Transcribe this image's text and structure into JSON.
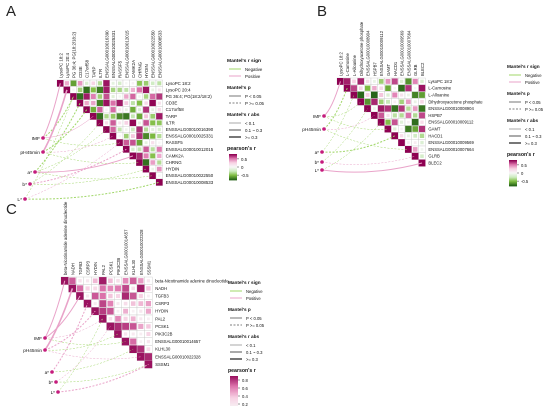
{
  "colors": {
    "pos_strong": "#8e0152",
    "pos_mid": "#de77ae",
    "pos_light": "#f7d2e4",
    "neutral": "#f7f7f7",
    "neg_light": "#cdebc0",
    "neg_mid": "#7fbc41",
    "neg_strong": "#276419",
    "grid": "#c8c8c8",
    "link_negative": "#a1d76a",
    "link_positive": "#e9a3c9",
    "env_point": "#c51b7d"
  },
  "legend_text": {
    "mantel_sign": "Mantel's r sign",
    "negative": "Negative",
    "positive": "Positive",
    "mantel_p": "Mantel's p",
    "p_lt": "P < 0.05",
    "p_ge": "P >= 0.05",
    "mantel_r": "Mantel's r abs",
    "r1": "< 0.1",
    "r2": "0.1 ~ 0.3",
    "r3": ">= 0.3",
    "pearson": "pearson's r"
  },
  "chart_data": [
    {
      "panel": "A",
      "type": "heatmap",
      "variables": [
        "LysoPC 18:2",
        "LysoPC 20:4",
        "PG 36:4; PG(18:2/18:2)",
        "CD3E",
        "C17orf58",
        "TARP",
        "ILTR",
        "ENSSALG00010016390",
        "ENSSALG00010025331",
        "RASSF5",
        "ENSSALG00010012015",
        "CAMK2A",
        "CHRNG",
        "HYDIN",
        "ENSSALG00010022550",
        "ENSSALG00010008533"
      ],
      "env_factors": [
        "IMF",
        "pH45min",
        "a*",
        "b*",
        "L*"
      ],
      "color_ticks": [
        0.5,
        0.0,
        -0.5
      ],
      "mantel_links": [
        {
          "env": "IMF",
          "target": 0,
          "sign": "positive",
          "width": "mid",
          "sig": true
        },
        {
          "env": "IMF",
          "target": 2,
          "sign": "negative",
          "width": "mid",
          "sig": false
        },
        {
          "env": "IMF",
          "target": 5,
          "sign": "positive",
          "width": "thin",
          "sig": true
        },
        {
          "env": "IMF",
          "target": 9,
          "sign": "negative",
          "width": "thin",
          "sig": false
        },
        {
          "env": "pH45min",
          "target": 1,
          "sign": "positive",
          "width": "thick",
          "sig": true
        },
        {
          "env": "pH45min",
          "target": 4,
          "sign": "negative",
          "width": "mid",
          "sig": false
        },
        {
          "env": "pH45min",
          "target": 8,
          "sign": "positive",
          "width": "thin",
          "sig": false
        },
        {
          "env": "pH45min",
          "target": 12,
          "sign": "negative",
          "width": "thin",
          "sig": false
        },
        {
          "env": "a*",
          "target": 3,
          "sign": "negative",
          "width": "mid",
          "sig": false
        },
        {
          "env": "a*",
          "target": 7,
          "sign": "negative",
          "width": "thin",
          "sig": false
        },
        {
          "env": "a*",
          "target": 11,
          "sign": "positive",
          "width": "mid",
          "sig": true
        },
        {
          "env": "a*",
          "target": 14,
          "sign": "negative",
          "width": "thin",
          "sig": false
        },
        {
          "env": "b*",
          "target": 6,
          "sign": "negative",
          "width": "thin",
          "sig": false
        },
        {
          "env": "b*",
          "target": 10,
          "sign": "positive",
          "width": "mid",
          "sig": false
        },
        {
          "env": "b*",
          "target": 13,
          "sign": "negative",
          "width": "thin",
          "sig": false
        },
        {
          "env": "L*",
          "target": 2,
          "sign": "negative",
          "width": "thin",
          "sig": false
        },
        {
          "env": "L*",
          "target": 9,
          "sign": "positive",
          "width": "thin",
          "sig": false
        },
        {
          "env": "L*",
          "target": 15,
          "sign": "negative",
          "width": "mid",
          "sig": false
        }
      ]
    },
    {
      "panel": "B",
      "type": "heatmap",
      "variables": [
        "LysoPC 18:2",
        "L-Carnosine",
        "L-Alloanine",
        "Dihydroxyacetone phosphate",
        "ENSSALG00010008904",
        "HSPB7",
        "ENSSALG00010009112",
        "GAMT",
        "HACD1",
        "ENSSALG00010009569",
        "ENSSALG00010007664",
        "GLRB",
        "BLEC2"
      ],
      "env_factors": [
        "IMF",
        "pH45min",
        "a*",
        "b*",
        "L*"
      ],
      "color_ticks": [
        0.5,
        0.0,
        -0.5
      ],
      "mantel_links": [
        {
          "env": "IMF",
          "target": 0,
          "sign": "positive",
          "width": "mid",
          "sig": true
        },
        {
          "env": "IMF",
          "target": 3,
          "sign": "negative",
          "width": "thin",
          "sig": false
        },
        {
          "env": "IMF",
          "target": 7,
          "sign": "negative",
          "width": "thin",
          "sig": false
        },
        {
          "env": "pH45min",
          "target": 1,
          "sign": "negative",
          "width": "mid",
          "sig": false
        },
        {
          "env": "pH45min",
          "target": 5,
          "sign": "positive",
          "width": "thin",
          "sig": false
        },
        {
          "env": "pH45min",
          "target": 10,
          "sign": "negative",
          "width": "thin",
          "sig": false
        },
        {
          "env": "a*",
          "target": 2,
          "sign": "negative",
          "width": "thin",
          "sig": false
        },
        {
          "env": "a*",
          "target": 8,
          "sign": "negative",
          "width": "mid",
          "sig": false
        },
        {
          "env": "b*",
          "target": 4,
          "sign": "negative",
          "width": "thin",
          "sig": false
        },
        {
          "env": "b*",
          "target": 11,
          "sign": "positive",
          "width": "thin",
          "sig": false
        },
        {
          "env": "L*",
          "target": 6,
          "sign": "negative",
          "width": "thin",
          "sig": false
        },
        {
          "env": "L*",
          "target": 12,
          "sign": "positive",
          "width": "mid",
          "sig": true
        }
      ]
    },
    {
      "panel": "C",
      "type": "heatmap",
      "variables": [
        "beta-Nicotinamide adenine dinucleotide",
        "NADH",
        "TGFB3",
        "CSRP3",
        "HYDIN",
        "PAL2",
        "PCSK1",
        "PIK3C2B",
        "ENSSALG00010014657",
        "KLHL30",
        "ENSSALG00010022328",
        "SSSM1"
      ],
      "env_factors": [
        "IMF",
        "pH45min",
        "a*",
        "b*",
        "L*"
      ],
      "color_ticks": [
        0.8,
        0.6,
        0.4,
        0.2
      ],
      "mantel_links": [
        {
          "env": "IMF",
          "target": 0,
          "sign": "positive",
          "width": "mid",
          "sig": true
        },
        {
          "env": "IMF",
          "target": 2,
          "sign": "positive",
          "width": "mid",
          "sig": true
        },
        {
          "env": "IMF",
          "target": 5,
          "sign": "positive",
          "width": "thin",
          "sig": false
        },
        {
          "env": "IMF",
          "target": 8,
          "sign": "negative",
          "width": "thin",
          "sig": false
        },
        {
          "env": "pH45min",
          "target": 1,
          "sign": "positive",
          "width": "thick",
          "sig": true
        },
        {
          "env": "pH45min",
          "target": 4,
          "sign": "positive",
          "width": "mid",
          "sig": false
        },
        {
          "env": "pH45min",
          "target": 7,
          "sign": "negative",
          "width": "thin",
          "sig": false
        },
        {
          "env": "pH45min",
          "target": 10,
          "sign": "positive",
          "width": "thin",
          "sig": false
        },
        {
          "env": "a*",
          "target": 3,
          "sign": "positive",
          "width": "mid",
          "sig": false
        },
        {
          "env": "a*",
          "target": 9,
          "sign": "negative",
          "width": "thin",
          "sig": false
        },
        {
          "env": "b*",
          "target": 6,
          "sign": "positive",
          "width": "thin",
          "sig": false
        },
        {
          "env": "b*",
          "target": 11,
          "sign": "negative",
          "width": "thin",
          "sig": false
        },
        {
          "env": "L*",
          "target": 5,
          "sign": "negative",
          "width": "thin",
          "sig": false
        },
        {
          "env": "L*",
          "target": 11,
          "sign": "positive",
          "width": "mid",
          "sig": false
        }
      ]
    }
  ]
}
